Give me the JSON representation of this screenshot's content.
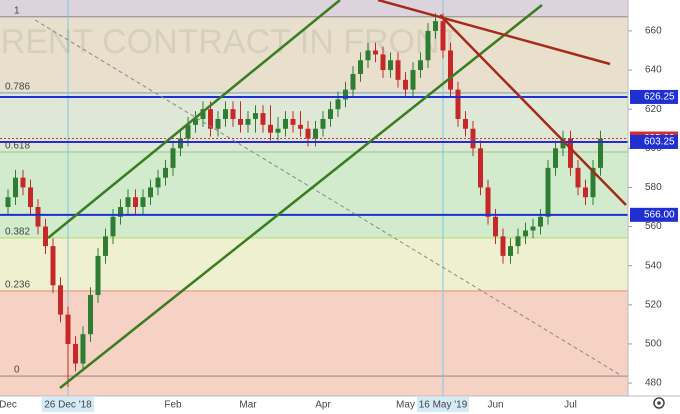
{
  "chart_data": {
    "type": "candlestick",
    "watermark": "BRENT CONTRACT IN FRONT",
    "categories": [
      "Dec",
      null,
      null,
      null,
      null,
      null,
      null,
      null,
      "26 Dec '18",
      null,
      null,
      null,
      null,
      null,
      null,
      null,
      null,
      null,
      null,
      null,
      null,
      null,
      "Feb",
      null,
      null,
      null,
      null,
      null,
      null,
      null,
      null,
      null,
      "Mar",
      null,
      null,
      null,
      null,
      null,
      null,
      null,
      null,
      null,
      "Apr",
      null,
      null,
      null,
      null,
      null,
      null,
      null,
      null,
      null,
      null,
      "May",
      null,
      null,
      null,
      null,
      "16 May '19",
      null,
      null,
      null,
      null,
      null,
      null,
      "Jun",
      null,
      null,
      null,
      null,
      null,
      null,
      null,
      null,
      null,
      "Jul",
      null,
      null,
      null,
      null
    ],
    "series": {
      "up_color": "#2e7d32",
      "down_color": "#c62828",
      "open": [
        570,
        575,
        585,
        580,
        570,
        560,
        550,
        530,
        515,
        500,
        490,
        505,
        525,
        545,
        555,
        565,
        570,
        575,
        570,
        575,
        580,
        585,
        590,
        600,
        605,
        612,
        615,
        620,
        610,
        615,
        620,
        615,
        612,
        615,
        618,
        612,
        608,
        610,
        615,
        612,
        610,
        605,
        610,
        615,
        620,
        625,
        630,
        638,
        645,
        650,
        648,
        640,
        645,
        635,
        630,
        640,
        645,
        660,
        665,
        650,
        630,
        615,
        610,
        600,
        580,
        565,
        555,
        545,
        550,
        555,
        558,
        560,
        565,
        590,
        600,
        605,
        590,
        580,
        575,
        590
      ],
      "high": [
        579,
        589,
        589,
        584,
        574,
        564,
        554,
        534,
        519,
        504,
        509,
        529,
        549,
        559,
        569,
        574,
        579,
        579,
        579,
        584,
        589,
        594,
        604,
        609,
        616,
        619,
        624,
        624,
        619,
        624,
        624,
        624,
        619,
        622,
        622,
        622,
        616,
        619,
        619,
        619,
        614,
        614,
        619,
        624,
        629,
        634,
        642,
        649,
        654,
        654,
        652,
        649,
        649,
        639,
        644,
        649,
        664,
        669,
        669,
        654,
        634,
        619,
        614,
        604,
        584,
        569,
        559,
        554,
        559,
        562,
        564,
        569,
        594,
        604,
        609,
        609,
        594,
        584,
        594,
        609
      ],
      "low": [
        566,
        571,
        576,
        566,
        556,
        546,
        526,
        511,
        478,
        486,
        486,
        501,
        521,
        541,
        551,
        561,
        566,
        566,
        566,
        571,
        576,
        581,
        586,
        596,
        601,
        608,
        611,
        606,
        606,
        611,
        611,
        608,
        608,
        608,
        608,
        604,
        604,
        606,
        608,
        606,
        601,
        601,
        606,
        611,
        616,
        621,
        626,
        634,
        641,
        644,
        636,
        636,
        631,
        626,
        626,
        636,
        641,
        656,
        646,
        626,
        611,
        606,
        596,
        576,
        561,
        551,
        541,
        541,
        546,
        551,
        554,
        556,
        561,
        586,
        596,
        586,
        576,
        571,
        571,
        586
      ],
      "close": [
        575,
        585,
        580,
        570,
        560,
        550,
        530,
        515,
        500,
        490,
        505,
        525,
        545,
        555,
        565,
        570,
        575,
        570,
        575,
        580,
        585,
        590,
        600,
        605,
        612,
        615,
        620,
        610,
        615,
        620,
        615,
        612,
        615,
        618,
        612,
        608,
        610,
        615,
        612,
        610,
        605,
        610,
        615,
        620,
        625,
        630,
        638,
        645,
        650,
        648,
        640,
        645,
        635,
        630,
        640,
        645,
        660,
        665,
        650,
        630,
        615,
        610,
        600,
        580,
        565,
        555,
        545,
        550,
        555,
        558,
        560,
        565,
        590,
        600,
        605,
        590,
        580,
        575,
        590,
        605
      ]
    },
    "ylim": [
      473.4,
      675.8
    ],
    "yticks": [
      480,
      500,
      520,
      540,
      560,
      580,
      600,
      620,
      640,
      660
    ],
    "top_color": "#dcd3dc",
    "fib_levels": [
      {
        "level": "1",
        "price": 667.2,
        "color": "#e8e0cc",
        "text_color": "#555555"
      },
      {
        "level": "0.786",
        "price": 628.3,
        "color": "#dfe7d6",
        "text_color": "#2f6fd0"
      },
      {
        "level": "0.618",
        "price": 598.1,
        "color": "#d3ebcd",
        "text_color": "#4caf50"
      },
      {
        "level": "0.382",
        "price": 554.2,
        "color": "#eff0cf",
        "text_color": "#9acd32"
      },
      {
        "level": "0.236",
        "price": 527.1,
        "color": "#f6d2c4",
        "text_color": "#d9534f"
      },
      {
        "level": "0",
        "price": 483.6,
        "color": "#f6d2c4",
        "text_color": "#555555"
      }
    ],
    "levels": [
      {
        "value": 626.25,
        "label": "626.25",
        "color": "#1f2fd0"
      },
      {
        "value": 605,
        "label": "605.00",
        "color": "#d32f2f"
      },
      {
        "value": 603.25,
        "label": "603.25",
        "color": "#1f2fd0"
      },
      {
        "value": 566,
        "label": "566.00",
        "color": "#1f2fd0"
      }
    ]
  }
}
